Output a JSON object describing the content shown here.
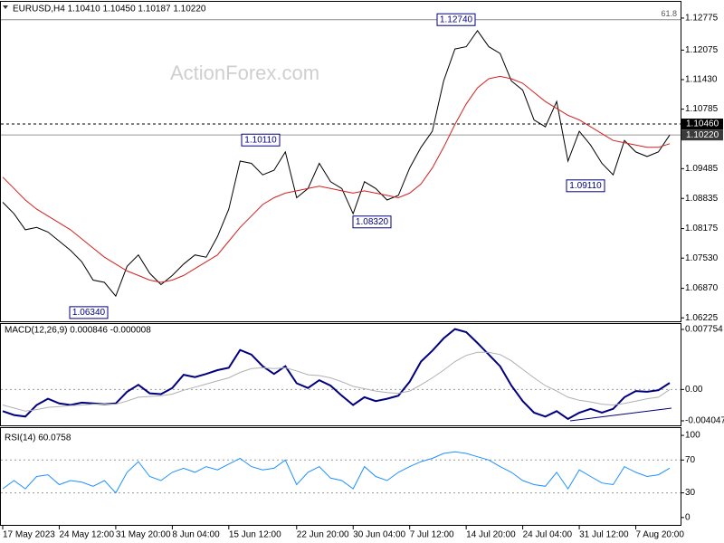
{
  "chart_data": [
    {
      "type": "line",
      "title": "EURUSD,H4  1.10410 1.10450 1.10187 1.10220",
      "watermark": "ActionForex.com",
      "ylim": [
        1.0615,
        1.1313
      ],
      "yticks": [
        1.12775,
        1.12075,
        {
          "value": 1.1143,
          "label": "1.11430"
        },
        1.10785,
        1.09485,
        1.08835,
        1.08175,
        {
          "value": 1.0753,
          "label": "1.07530"
        },
        {
          "value": 1.0687,
          "label": "1.06870"
        },
        1.06225
      ],
      "grid": false,
      "series": [
        {
          "color": "#000000",
          "width": 1,
          "values": [
            1.0875,
            1.085,
            1.0815,
            1.082,
            1.081,
            1.079,
            1.077,
            1.0745,
            1.0705,
            1.07,
            1.067,
            1.0735,
            1.076,
            1.072,
            1.0695,
            1.0715,
            1.074,
            1.076,
            1.0755,
            1.08,
            1.086,
            1.0965,
            1.096,
            1.0935,
            1.0945,
            1.0985,
            1.0885,
            1.0905,
            1.096,
            1.092,
            1.0905,
            1.085,
            1.092,
            1.0905,
            1.088,
            1.089,
            1.095,
            1.0995,
            1.103,
            1.114,
            1.121,
            1.1215,
            1.125,
            1.1215,
            1.12,
            1.114,
            1.112,
            1.1055,
            1.104,
            1.1095,
            1.0965,
            1.103,
            1.1,
            1.096,
            1.0935,
            1.101,
            1.0985,
            1.0975,
            1.0985,
            1.1022
          ]
        },
        {
          "color": "#d42020",
          "width": 1,
          "values": [
            1.093,
            1.0905,
            1.088,
            1.086,
            1.0845,
            1.083,
            1.0815,
            1.0795,
            1.0775,
            1.0755,
            1.074,
            1.0725,
            1.0715,
            1.0705,
            1.07,
            1.0705,
            1.0715,
            1.073,
            1.0745,
            1.076,
            1.079,
            1.082,
            1.0845,
            1.087,
            1.0885,
            1.0895,
            1.09,
            1.0905,
            1.091,
            1.0905,
            1.09,
            1.0895,
            1.09,
            1.0895,
            1.089,
            1.0885,
            1.0895,
            1.0915,
            1.095,
            1.0995,
            1.1045,
            1.109,
            1.1125,
            1.1145,
            1.115,
            1.1145,
            1.1135,
            1.1115,
            1.1095,
            1.108,
            1.1065,
            1.1055,
            1.104,
            1.1025,
            1.101,
            1.1005,
            1.1,
            1.0995,
            1.0995,
            1.1003
          ]
        }
      ],
      "fib_line": {
        "value": 1.1274,
        "label": "61.8"
      },
      "marker_lines": [
        {
          "value": 1.1046,
          "label": "1.10460",
          "style": "dashed"
        },
        {
          "value": 1.1022,
          "label": "1.10220",
          "style": "solid"
        }
      ],
      "annotations": [
        {
          "value": 1.1274,
          "label": "1.12740"
        },
        {
          "value": 1.1011,
          "label": "1.10110"
        },
        {
          "value": 1.0832,
          "label": "1.08320"
        },
        {
          "value": 1.0634,
          "label": "1.06340"
        },
        {
          "value": 1.0911,
          "label": "1.09110"
        }
      ]
    },
    {
      "type": "line",
      "title": "MACD(12,26,9) 0.000846 -0.000008",
      "ylim": [
        -0.00463,
        0.00857
      ],
      "yticks": [
        0.007754,
        {
          "value": 0,
          "label": "0.00"
        },
        -0.004047
      ],
      "grid": true,
      "series": [
        {
          "color": "#000080",
          "width": 2,
          "values": [
            -0.0028,
            -0.0033,
            -0.0035,
            -0.002,
            -0.0012,
            -0.0018,
            -0.002,
            -0.0017,
            -0.0018,
            -0.0019,
            -0.0018,
            -0.0003,
            0.0006,
            -0.0005,
            -0.0006,
            0.0002,
            0.0019,
            0.0016,
            0.002,
            0.0025,
            0.0028,
            0.0051,
            0.0045,
            0.003,
            0.002,
            0.003,
            0.0008,
            0.0002,
            0.0012,
            0.0005,
            -0.0008,
            -0.002,
            -0.001,
            -0.0015,
            -0.0012,
            -0.0008,
            0.001,
            0.0036,
            0.005,
            0.0066,
            0.0078,
            0.0074,
            0.006,
            0.0045,
            0.003,
            0.0005,
            -0.0015,
            -0.003,
            -0.0035,
            -0.0028,
            -0.0038,
            -0.003,
            -0.0025,
            -0.003,
            -0.0025,
            -0.001,
            -0.0002,
            -0.0003,
            -0.0001,
            0.000846
          ]
        },
        {
          "color": "#b0b0b0",
          "width": 1,
          "values": [
            -0.002,
            -0.0024,
            -0.0028,
            -0.0026,
            -0.0023,
            -0.0022,
            -0.0021,
            -0.002,
            -0.0019,
            -0.0019,
            -0.0019,
            -0.0015,
            -0.001,
            -0.0009,
            -0.0008,
            -0.0006,
            -0.0001,
            0.0003,
            0.0007,
            0.0011,
            0.0015,
            0.0022,
            0.0027,
            0.0028,
            0.0027,
            0.0028,
            0.0024,
            0.0019,
            0.0018,
            0.0015,
            0.001,
            0.0004,
            0.0001,
            -0.0002,
            -0.0004,
            -0.0005,
            -0.0002,
            0.0006,
            0.0015,
            0.0025,
            0.0036,
            0.0044,
            0.0048,
            0.0048,
            0.0045,
            0.0037,
            0.0026,
            0.0015,
            0.0005,
            -0.0002,
            -0.001,
            -0.0014,
            -0.0016,
            -0.0019,
            -0.002,
            -0.0018,
            -0.0015,
            -0.0012,
            -0.001,
            -8e-06
          ]
        }
      ]
    },
    {
      "type": "line",
      "title": "RSI(14) 60.0758",
      "ylim": [
        -9,
        110
      ],
      "yticks": [
        100,
        70,
        30,
        0
      ],
      "grid": true,
      "series": [
        {
          "color": "#1e90ff",
          "width": 1,
          "values": [
            35,
            45,
            35,
            50,
            52,
            40,
            45,
            43,
            38,
            45,
            30,
            55,
            68,
            50,
            45,
            55,
            60,
            55,
            62,
            58,
            65,
            72,
            62,
            58,
            60,
            70,
            40,
            55,
            62,
            48,
            45,
            35,
            62,
            50,
            45,
            55,
            62,
            68,
            72,
            78,
            80,
            78,
            74,
            70,
            62,
            55,
            45,
            40,
            38,
            55,
            35,
            58,
            50,
            42,
            40,
            62,
            55,
            50,
            52,
            60.0758
          ]
        }
      ],
      "categories": [
        "17 May 2023",
        null,
        null,
        null,
        null,
        "24 May 12:00",
        null,
        null,
        null,
        null,
        "31 May 20:00",
        null,
        null,
        null,
        null,
        "8 Jun 04:00",
        null,
        null,
        null,
        null,
        "15 Jun 12:00",
        null,
        null,
        null,
        null,
        null,
        "22 Jun 20:00",
        null,
        null,
        null,
        null,
        "30 Jun 04:00",
        null,
        null,
        null,
        null,
        "7 Jul 12:00",
        null,
        null,
        null,
        null,
        "14 Jul 20:00",
        null,
        null,
        null,
        null,
        "24 Jul 04:00",
        null,
        null,
        null,
        null,
        "31 Jul 12:00",
        null,
        null,
        null,
        null,
        "7 Aug 20:00",
        null,
        null,
        null
      ]
    }
  ]
}
